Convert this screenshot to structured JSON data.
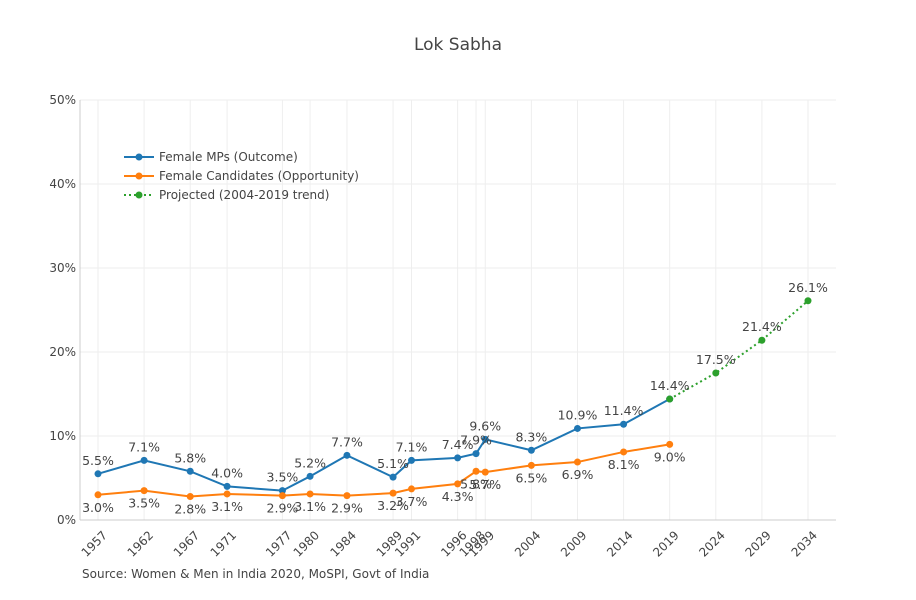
{
  "chart_data": {
    "type": "line",
    "title": "Lok Sabha",
    "xlabel": "",
    "ylabel": "",
    "ylim": [
      0,
      50
    ],
    "y_ticks": [
      "0%",
      "10%",
      "20%",
      "30%",
      "40%",
      "50%"
    ],
    "y_tick_values": [
      0,
      10,
      20,
      30,
      40,
      50
    ],
    "x_ticks": [
      "1957",
      "1962",
      "1967",
      "1971",
      "1977",
      "1980",
      "1984",
      "1989",
      "1991",
      "1996",
      "1998",
      "1999",
      "2004",
      "2009",
      "2014",
      "2019",
      "2024",
      "2029",
      "2034"
    ],
    "xlim": [
      1952,
      2037
    ],
    "grid": true,
    "legend_position": "top-left",
    "series": [
      {
        "name": "Female MPs (Outcome)",
        "color": "#1f77b4",
        "style": "solid",
        "label_position": "above",
        "x": [
          1957,
          1962,
          1967,
          1971,
          1977,
          1980,
          1984,
          1989,
          1991,
          1996,
          1998,
          1999,
          2004,
          2009,
          2014,
          2019
        ],
        "values": [
          5.5,
          7.1,
          5.8,
          4.0,
          3.5,
          5.2,
          7.7,
          5.1,
          7.1,
          7.4,
          7.9,
          9.6,
          8.3,
          10.9,
          11.4,
          14.4
        ]
      },
      {
        "name": "Female Candidates (Opportunity)",
        "color": "#ff7f0e",
        "style": "solid",
        "label_position": "below",
        "x": [
          1957,
          1962,
          1967,
          1971,
          1977,
          1980,
          1984,
          1989,
          1991,
          1996,
          1998,
          1999,
          2004,
          2009,
          2014,
          2019
        ],
        "values": [
          3.0,
          3.5,
          2.8,
          3.1,
          2.9,
          3.1,
          2.9,
          3.2,
          3.7,
          4.3,
          5.8,
          5.7,
          6.5,
          6.9,
          8.1,
          9.0
        ]
      },
      {
        "name": "Projected (2004-2019 trend)",
        "color": "#2ca02c",
        "style": "dotted",
        "label_position": "above",
        "x": [
          2019,
          2024,
          2029,
          2034
        ],
        "values": [
          14.4,
          17.5,
          21.4,
          26.1
        ]
      }
    ],
    "annotation": "Source: Women & Men in India 2020, MoSPI, Govt of India"
  }
}
